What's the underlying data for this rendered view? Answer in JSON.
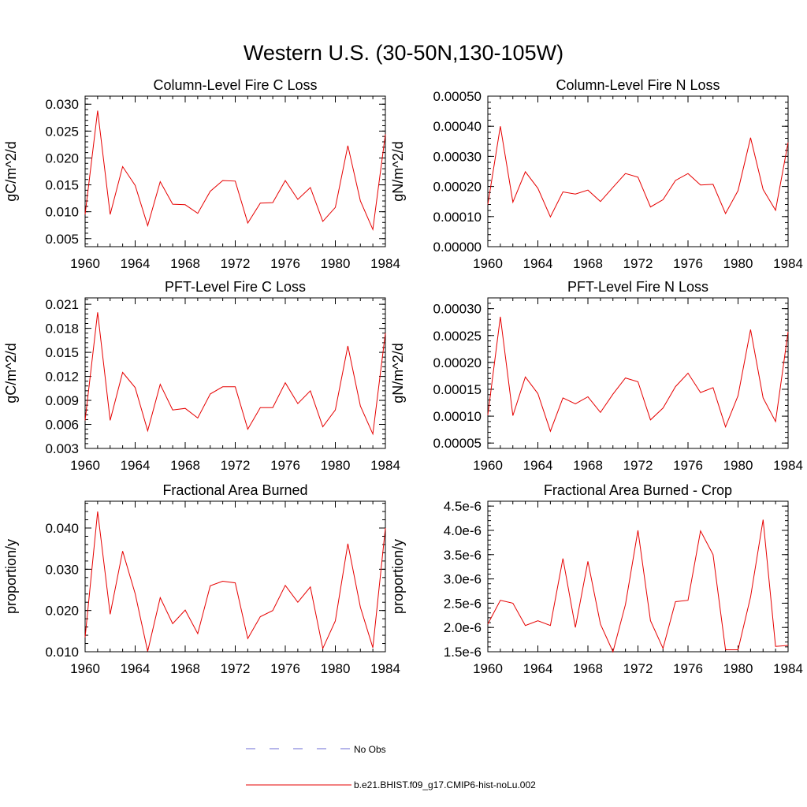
{
  "figure": {
    "title": "Western U.S. (30-50N,130-105W)"
  },
  "legend": {
    "items": [
      {
        "label": "No Obs",
        "color": "#6b6bd6",
        "style": "dashed"
      },
      {
        "label": "b.e21.BHIST.f09_g17.CMIP6-hist-noLu.002",
        "color": "#e60000",
        "style": "solid"
      }
    ]
  },
  "chart_data": [
    {
      "type": "line",
      "title": "Column-Level Fire C Loss",
      "ylabel": "gC/m^2/d",
      "xlabel": "",
      "x": [
        1960,
        1961,
        1962,
        1963,
        1964,
        1965,
        1966,
        1967,
        1968,
        1969,
        1970,
        1971,
        1972,
        1973,
        1974,
        1975,
        1976,
        1977,
        1978,
        1979,
        1980,
        1981,
        1982,
        1983,
        1984
      ],
      "xlim": [
        1960,
        1984
      ],
      "xticks": [
        1960,
        1964,
        1968,
        1972,
        1976,
        1980,
        1984
      ],
      "xtick_labels": [
        "1960",
        "1964",
        "1968",
        "1972",
        "1976",
        "1980",
        "1984"
      ],
      "ylim": [
        0.0035,
        0.0315
      ],
      "yticks": [
        0.005,
        0.01,
        0.015,
        0.02,
        0.025,
        0.03
      ],
      "ytick_labels": [
        "0.005",
        "0.010",
        "0.015",
        "0.020",
        "0.025",
        "0.030"
      ],
      "series": [
        {
          "values": [
            0.0095,
            0.0288,
            0.0095,
            0.0184,
            0.0149,
            0.0074,
            0.0156,
            0.0114,
            0.0113,
            0.0097,
            0.0138,
            0.0158,
            0.0157,
            0.0079,
            0.0116,
            0.0117,
            0.0158,
            0.0123,
            0.0145,
            0.0082,
            0.0108,
            0.0223,
            0.012,
            0.0067,
            0.0244
          ],
          "color": "#e60000"
        }
      ]
    },
    {
      "type": "line",
      "title": "Column-Level Fire N Loss",
      "ylabel": "gN/m^2/d",
      "xlabel": "",
      "x": [
        1960,
        1961,
        1962,
        1963,
        1964,
        1965,
        1966,
        1967,
        1968,
        1969,
        1970,
        1971,
        1972,
        1973,
        1974,
        1975,
        1976,
        1977,
        1978,
        1979,
        1980,
        1981,
        1982,
        1983,
        1984
      ],
      "xlim": [
        1960,
        1984
      ],
      "xticks": [
        1960,
        1964,
        1968,
        1972,
        1976,
        1980,
        1984
      ],
      "xtick_labels": [
        "1960",
        "1964",
        "1968",
        "1972",
        "1976",
        "1980",
        "1984"
      ],
      "ylim": [
        0.0,
        0.0005
      ],
      "yticks": [
        0.0,
        0.0001,
        0.0002,
        0.0003,
        0.0004,
        0.0005
      ],
      "ytick_labels": [
        "0.00000",
        "0.00010",
        "0.00020",
        "0.00030",
        "0.00040",
        "0.00050"
      ],
      "series": [
        {
          "values": [
            0.00014,
            0.0004,
            0.000148,
            0.000249,
            0.000194,
            9.9e-05,
            0.000182,
            0.000175,
            0.000188,
            0.00015,
            0.000197,
            0.000243,
            0.000231,
            0.000132,
            0.000156,
            0.00022,
            0.000243,
            0.000205,
            0.000207,
            0.00011,
            0.000186,
            0.000362,
            0.00019,
            0.000121,
            0.000346
          ],
          "color": "#e60000"
        }
      ]
    },
    {
      "type": "line",
      "title": "PFT-Level Fire C Loss",
      "ylabel": "gC/m^2/d",
      "xlabel": "",
      "x": [
        1960,
        1961,
        1962,
        1963,
        1964,
        1965,
        1966,
        1967,
        1968,
        1969,
        1970,
        1971,
        1972,
        1973,
        1974,
        1975,
        1976,
        1977,
        1978,
        1979,
        1980,
        1981,
        1982,
        1983,
        1984
      ],
      "xlim": [
        1960,
        1984
      ],
      "xticks": [
        1960,
        1964,
        1968,
        1972,
        1976,
        1980,
        1984
      ],
      "xtick_labels": [
        "1960",
        "1964",
        "1968",
        "1972",
        "1976",
        "1980",
        "1984"
      ],
      "ylim": [
        0.003,
        0.0218
      ],
      "yticks": [
        0.003,
        0.006,
        0.009,
        0.012,
        0.015,
        0.018,
        0.021
      ],
      "ytick_labels": [
        "0.003",
        "0.006",
        "0.009",
        "0.012",
        "0.015",
        "0.018",
        "0.021"
      ],
      "series": [
        {
          "values": [
            0.0065,
            0.02,
            0.0065,
            0.0125,
            0.0106,
            0.0052,
            0.011,
            0.0078,
            0.008,
            0.0068,
            0.0098,
            0.0107,
            0.0107,
            0.0054,
            0.0081,
            0.0081,
            0.0112,
            0.0086,
            0.0102,
            0.0057,
            0.0078,
            0.0158,
            0.0083,
            0.0048,
            0.0174
          ],
          "color": "#e60000"
        }
      ]
    },
    {
      "type": "line",
      "title": "PFT-Level Fire N Loss",
      "ylabel": "gN/m^2/d",
      "xlabel": "",
      "x": [
        1960,
        1961,
        1962,
        1963,
        1964,
        1965,
        1966,
        1967,
        1968,
        1969,
        1970,
        1971,
        1972,
        1973,
        1974,
        1975,
        1976,
        1977,
        1978,
        1979,
        1980,
        1981,
        1982,
        1983,
        1984
      ],
      "xlim": [
        1960,
        1984
      ],
      "xticks": [
        1960,
        1964,
        1968,
        1972,
        1976,
        1980,
        1984
      ],
      "xtick_labels": [
        "1960",
        "1964",
        "1968",
        "1972",
        "1976",
        "1980",
        "1984"
      ],
      "ylim": [
        4e-05,
        0.00032
      ],
      "yticks": [
        5e-05,
        0.0001,
        0.00015,
        0.0002,
        0.00025,
        0.0003
      ],
      "ytick_labels": [
        "0.00005",
        "0.00010",
        "0.00015",
        "0.00020",
        "0.00025",
        "0.00030"
      ],
      "series": [
        {
          "values": [
            0.000102,
            0.000285,
            0.000101,
            0.000173,
            0.000142,
            7.2e-05,
            0.000134,
            0.000123,
            0.000136,
            0.000107,
            0.000141,
            0.000171,
            0.000164,
            9.3e-05,
            0.000115,
            0.000155,
            0.00018,
            0.000144,
            0.000153,
            8e-05,
            0.000138,
            0.000261,
            0.000134,
            9e-05,
            0.000257
          ],
          "color": "#e60000"
        }
      ]
    },
    {
      "type": "line",
      "title": "Fractional Area Burned",
      "ylabel": "proportion/y",
      "xlabel": "",
      "x": [
        1960,
        1961,
        1962,
        1963,
        1964,
        1965,
        1966,
        1967,
        1968,
        1969,
        1970,
        1971,
        1972,
        1973,
        1974,
        1975,
        1976,
        1977,
        1978,
        1979,
        1980,
        1981,
        1982,
        1983,
        1984
      ],
      "xlim": [
        1960,
        1984
      ],
      "xticks": [
        1960,
        1964,
        1968,
        1972,
        1976,
        1980,
        1984
      ],
      "xtick_labels": [
        "1960",
        "1964",
        "1968",
        "1972",
        "1976",
        "1980",
        "1984"
      ],
      "ylim": [
        0.01,
        0.0465
      ],
      "yticks": [
        0.01,
        0.02,
        0.03,
        0.04
      ],
      "ytick_labels": [
        "0.010",
        "0.020",
        "0.030",
        "0.040"
      ],
      "series": [
        {
          "values": [
            0.0135,
            0.044,
            0.0191,
            0.0344,
            0.0241,
            0.0101,
            0.0231,
            0.0168,
            0.0201,
            0.0144,
            0.026,
            0.0271,
            0.0267,
            0.0132,
            0.0185,
            0.02,
            0.0261,
            0.022,
            0.0257,
            0.0108,
            0.0175,
            0.0362,
            0.0208,
            0.011,
            0.04
          ],
          "color": "#e60000"
        }
      ]
    },
    {
      "type": "line",
      "title": "Fractional Area Burned - Crop",
      "ylabel": "proportion/y",
      "xlabel": "",
      "x": [
        1960,
        1961,
        1962,
        1963,
        1964,
        1965,
        1966,
        1967,
        1968,
        1969,
        1970,
        1971,
        1972,
        1973,
        1974,
        1975,
        1976,
        1977,
        1978,
        1979,
        1980,
        1981,
        1982,
        1983,
        1984
      ],
      "xlim": [
        1960,
        1984
      ],
      "xticks": [
        1960,
        1964,
        1968,
        1972,
        1976,
        1980,
        1984
      ],
      "xtick_labels": [
        "1960",
        "1964",
        "1968",
        "1972",
        "1976",
        "1980",
        "1984"
      ],
      "ylim": [
        1.5e-06,
        4.6e-06
      ],
      "yticks": [
        1.5e-06,
        2e-06,
        2.5e-06,
        3e-06,
        3.5e-06,
        4e-06,
        4.5e-06
      ],
      "ytick_labels": [
        "1.5e-6",
        "2.0e-6",
        "2.5e-6",
        "3.0e-6",
        "3.5e-6",
        "4.0e-6",
        "4.5e-6"
      ],
      "series": [
        {
          "values": [
            2.07e-06,
            2.56e-06,
            2.5e-06,
            2.04e-06,
            2.14e-06,
            2.04e-06,
            3.42e-06,
            2e-06,
            3.36e-06,
            2.07e-06,
            1.5e-06,
            2.47e-06,
            4e-06,
            2.14e-06,
            1.57e-06,
            2.53e-06,
            2.56e-06,
            3.99e-06,
            3.5e-06,
            1.54e-06,
            1.54e-06,
            2.63e-06,
            4.22e-06,
            1.61e-06,
            1.63e-06
          ],
          "color": "#e60000"
        }
      ]
    }
  ]
}
